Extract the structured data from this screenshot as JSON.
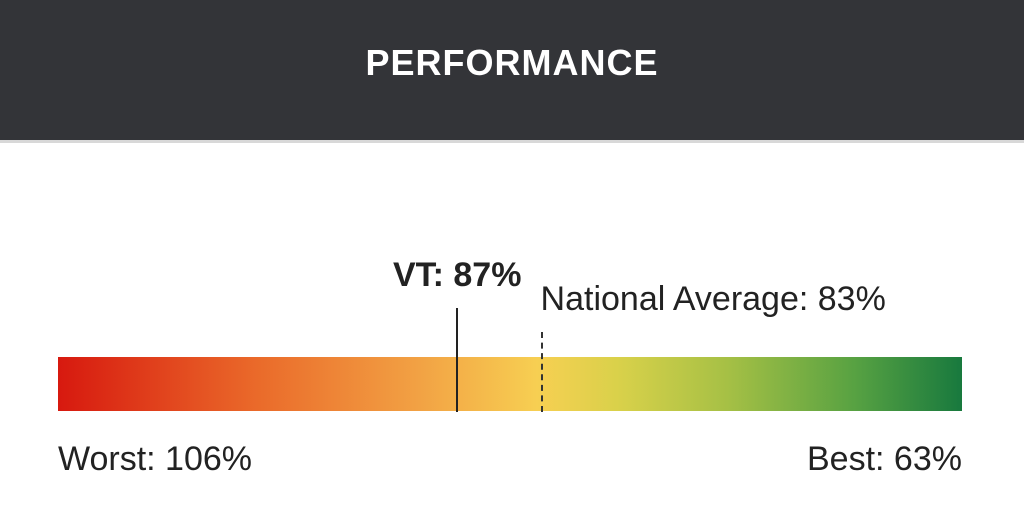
{
  "header": {
    "title": "PERFORMANCE"
  },
  "chart_data": {
    "type": "gauge",
    "scale": {
      "worst": 106,
      "best": 63,
      "unit": "%"
    },
    "markers": [
      {
        "label": "VT: 87%",
        "value": 87,
        "style": "solid"
      },
      {
        "label": "National Average: 83%",
        "value": 83,
        "style": "dashed"
      }
    ],
    "worst_label": "Worst: 106%",
    "best_label": "Best: 63%",
    "gradient_colors": [
      "#d7190f",
      "#f2a244",
      "#f7cf52",
      "#a6c045",
      "#18793e"
    ]
  }
}
